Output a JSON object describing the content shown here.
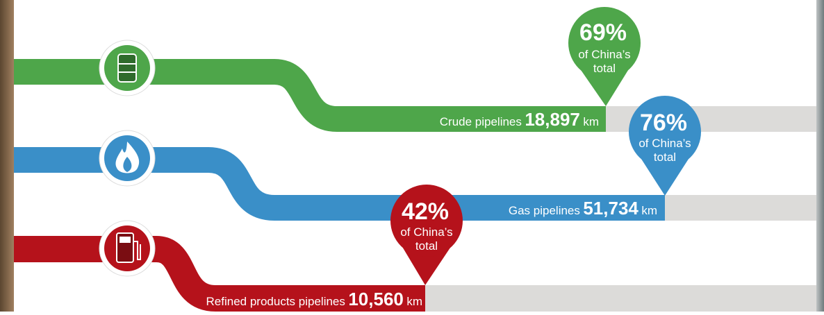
{
  "items": [
    {
      "label": "Crude pipelines",
      "length": "18,897",
      "unit": "km",
      "share": "69%",
      "note_lines": [
        "of China’s",
        "total"
      ]
    },
    {
      "label": "Gas pipelines",
      "length": "51,734",
      "unit": "km",
      "share": "76%",
      "note_lines": [
        "of China’s",
        "total"
      ]
    },
    {
      "label": "Refined products pipelines",
      "length": "10,560",
      "unit": "km",
      "share": "42%",
      "note_lines": [
        "of China’s",
        "total"
      ]
    }
  ]
}
